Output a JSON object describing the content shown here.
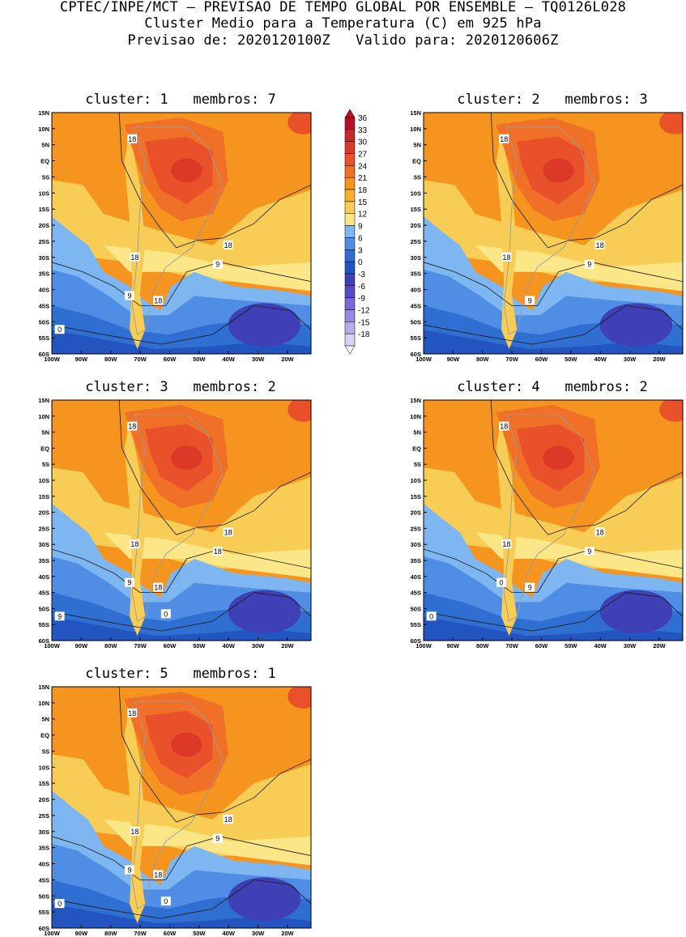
{
  "header": {
    "line1": "CPTEC/INPE/MCT – PREVISAO DE TEMPO GLOBAL POR ENSEMBLE – TQ0126L028",
    "line2": "Cluster Medio para a Temperatura (C) em 925 hPa",
    "line3": "Previsao de: 2020120100Z   Valido para: 2020120606Z"
  },
  "lat_labels": [
    "15N",
    "10N",
    "5N",
    "EQ",
    "5S",
    "10S",
    "15S",
    "20S",
    "25S",
    "30S",
    "35S",
    "40S",
    "45S",
    "50S",
    "55S",
    "60S"
  ],
  "lon_labels": [
    "100W",
    "90W",
    "80W",
    "70W",
    "60W",
    "50W",
    "40W",
    "30W",
    "20W"
  ],
  "colorbar": {
    "levels": [
      "36",
      "33",
      "30",
      "27",
      "24",
      "21",
      "18",
      "15",
      "12",
      "9",
      "6",
      "3",
      "0",
      "-3",
      "-6",
      "-9",
      "-12",
      "-15",
      "-18"
    ],
    "colors": [
      "#b5102a",
      "#c8282a",
      "#dc3a26",
      "#e8512a",
      "#f07028",
      "#f5951f",
      "#f7b02e",
      "#f8cd55",
      "#fbe788",
      "#7db6f0",
      "#4f8ee4",
      "#2f6fd2",
      "#2255c0",
      "#3f3fb6",
      "#5a4cc4",
      "#7a68d6",
      "#9b88e0",
      "#bcacea",
      "#dcd3f4"
    ]
  },
  "panels": [
    {
      "title": "cluster: 1   membros: 7",
      "contour_labels": [
        "18",
        "18",
        "18",
        "18",
        "9",
        "9",
        "0"
      ]
    },
    {
      "title": "cluster: 2   membros: 3",
      "contour_labels": [
        "18",
        "18",
        "18",
        "9",
        "9"
      ]
    },
    {
      "title": "cluster: 3   membros: 2",
      "contour_labels": [
        "18",
        "18",
        "18",
        "18",
        "18",
        "9",
        "9",
        "0"
      ]
    },
    {
      "title": "cluster: 4   membros: 2",
      "contour_labels": [
        "18",
        "18",
        "18",
        "9",
        "9",
        "0",
        "0"
      ]
    },
    {
      "title": "cluster: 5   membros: 1",
      "contour_labels": [
        "18",
        "18",
        "18",
        "18",
        "9",
        "9",
        "0",
        "0"
      ]
    }
  ]
}
